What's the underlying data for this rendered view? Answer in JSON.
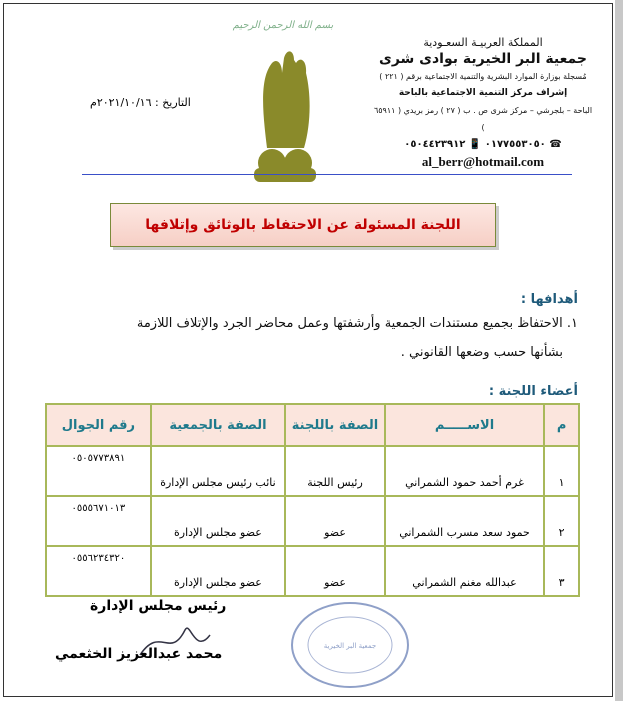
{
  "header": {
    "kingdom": "المملكة العربيـة السعـودية",
    "org": "جمعية البر الخيرية بوادى شرى",
    "registration": "مُسجلة بوزارة الموارد البشرية والتنمية الاجتماعية برقم ( ٢٢١ )",
    "supervision": "إشراف مركز التنمية الاجتماعية بالباحة",
    "address": "الباحة – بلجرشي – مركز شرى ص . ب ( ٢٧ ) رمز بريدي ( ٦٥٩١١ )",
    "phones": "☎ ٠١٧٧٥٥٣٠٥٠   📱 ٠٥٠٤٤٢٣٩١٢",
    "email": "al_berr@hotmail.com",
    "basmala": "بسم الله الرحمن الرحيم"
  },
  "date": "التاريخ : ٢٠٢١/١٠/١٦م",
  "title": "اللجنة المسئولة عن الاحتفاظ بالوثائق وإتلافها",
  "goals": {
    "heading": "أهدافها :",
    "item1_line1": "١. الاحتفاظ بجميع مستندات الجمعية وأرشفتها وعمل محاضر الجرد والإتلاف اللازمة",
    "item1_line2": "بشأنها حسب وضعها القانوني ."
  },
  "members": {
    "heading": "أعضاء اللجنة :",
    "columns": [
      "م",
      "الاســـــم",
      "الصفة باللجنة",
      "الصفة بالجمعية",
      "رقم الجوال"
    ],
    "rows": [
      [
        "١",
        "غرم أحمد حمود الشمراني",
        "رئيس اللجنة",
        "نائب رئيس مجلس الإدارة",
        "٠٥٠٥٧٧٣٨٩١"
      ],
      [
        "٢",
        "حمود سعد مسرب الشمراني",
        "عضو",
        "عضو مجلس الإدارة",
        "٠٥٥٥٦٧١٠١٣"
      ],
      [
        "٣",
        "عبدالله مغنم الشمراني",
        "عضو",
        "عضو مجلس الإدارة",
        "٠٥٥٦٢٣٤٣٢٠"
      ]
    ]
  },
  "signature": {
    "role": "رئيس مجلس الإدارة",
    "name": "محمد عبدالعزيز الخثعمي"
  },
  "stamp_text": "المملكة العربية السعودية جمعية البر الخيرية بوادي شرى",
  "colors": {
    "title_text": "#c00000",
    "table_border": "#a8b85a",
    "header_text": "#1f7a8c",
    "logo": "#8a8a2a"
  }
}
